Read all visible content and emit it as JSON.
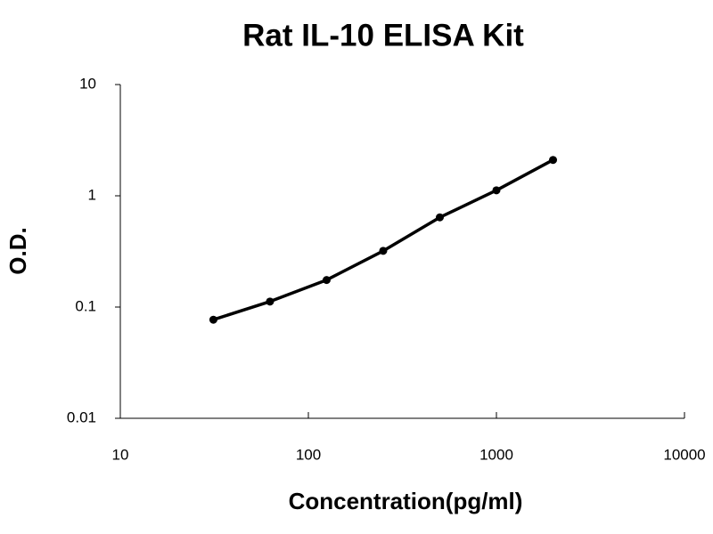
{
  "chart_data": {
    "type": "line",
    "title": "Rat IL-10 ELISA Kit",
    "x_label": "Concentration(pg/ml)",
    "y_label": "O.D.",
    "x": [
      31.25,
      62.5,
      125,
      250,
      500,
      1000,
      2000
    ],
    "series": [
      {
        "name": "O.D.",
        "color": "#000000",
        "values": [
          0.077,
          0.112,
          0.175,
          0.32,
          0.64,
          1.12,
          2.1
        ]
      }
    ],
    "x_log": true,
    "y_log": true,
    "xlim": [
      10,
      10000
    ],
    "xticks": [
      10,
      100,
      1000,
      10000
    ],
    "ylim": [
      0.01,
      10
    ],
    "yticks": [
      0.01,
      0.1,
      1,
      10
    ],
    "markers": true,
    "grid": false
  }
}
